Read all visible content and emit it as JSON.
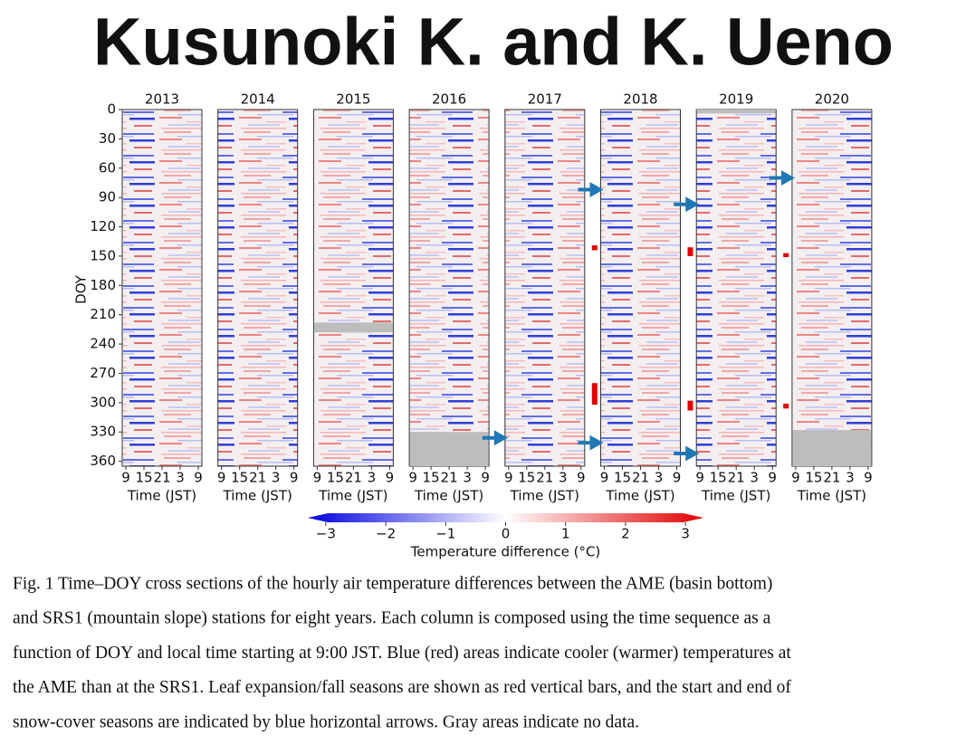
{
  "header": {
    "title": "Kusunoki K. and K. Ueno"
  },
  "figure": {
    "years": [
      "2013",
      "2014",
      "2015",
      "2016",
      "2017",
      "2018",
      "2019",
      "2020"
    ],
    "y_label": "DOY",
    "ylim": [
      0,
      365
    ],
    "yticks": [
      0,
      30,
      60,
      90,
      120,
      150,
      180,
      210,
      240,
      270,
      300,
      330,
      360
    ],
    "xticks": [
      "9",
      "15",
      "21",
      "3",
      "9"
    ],
    "x_label": "Time (JST)",
    "colorbar": {
      "lim": [
        -3.3,
        3.3
      ],
      "ticks": [
        {
          "value": -3,
          "label": "−3"
        },
        {
          "value": -2,
          "label": "−2"
        },
        {
          "value": -1,
          "label": "−1"
        },
        0,
        1,
        2,
        3
      ],
      "label": "Temperature difference (°C)"
    },
    "no_data": [
      {
        "panel": 2,
        "doy": [
          218,
          228
        ]
      },
      {
        "panel": 3,
        "doy": [
          330,
          365
        ]
      },
      {
        "panel": 6,
        "doy": [
          0,
          4
        ]
      },
      {
        "panel": 7,
        "doy": [
          328,
          365
        ]
      }
    ],
    "arrows": [
      {
        "panel": 3,
        "doy": 336
      },
      {
        "panel": 4,
        "doy": 82
      },
      {
        "panel": 4,
        "doy": 341
      },
      {
        "panel": 5,
        "doy": 97
      },
      {
        "panel": 5,
        "doy": 352
      },
      {
        "panel": 6,
        "doy": 70
      }
    ],
    "leaf_bars": [
      {
        "panel": 4,
        "doy": [
          139,
          144
        ]
      },
      {
        "panel": 4,
        "doy": [
          280,
          302
        ]
      },
      {
        "panel": 5,
        "doy": [
          141,
          150
        ]
      },
      {
        "panel": 5,
        "doy": [
          298,
          308
        ]
      },
      {
        "panel": 6,
        "doy": [
          147,
          151
        ]
      },
      {
        "panel": 6,
        "doy": [
          301,
          306
        ]
      }
    ]
  },
  "caption": [
    "Fig. 1 Time–DOY cross sections of the hourly air temperature differences between the AME (basin bottom)",
    "and SRS1 (mountain slope) stations for eight years. Each column is composed using the time sequence as a",
    "function of DOY and local time starting at 9:00 JST. Blue (red) areas indicate cooler (warmer) temperatures at",
    "the AME than at the SRS1. Leaf expansion/fall seasons are shown as red vertical bars, and the start and end of",
    "snow-cover seasons are indicated by blue horizontal arrows. Gray areas indicate no data."
  ]
}
